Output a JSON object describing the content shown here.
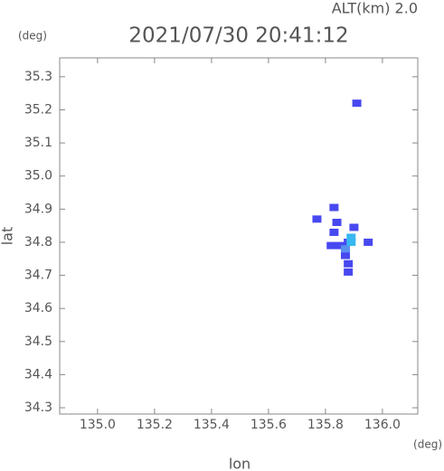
{
  "chart_data": {
    "type": "scatter",
    "title": "2021/07/30 20:41:12",
    "subtitle": "ALT(km) 2.0",
    "y_unit": "(deg)",
    "x_unit": "(deg)",
    "xlabel": "lon",
    "ylabel": "lat",
    "xlim": [
      134.867,
      136.124
    ],
    "ylim": [
      34.281,
      35.357
    ],
    "xticks": [
      {
        "value": 135,
        "label": "135.0"
      },
      135.2,
      135.4,
      135.6,
      135.8,
      {
        "value": 136,
        "label": "136.0"
      }
    ],
    "yticks": [
      34.3,
      34.4,
      34.5,
      34.6,
      34.7,
      34.8,
      34.9,
      {
        "value": 35,
        "label": "35.0"
      },
      35.1,
      35.2,
      35.3
    ],
    "x": [
      135.91,
      135.83,
      135.77,
      135.84,
      135.83,
      135.82,
      135.85,
      135.9,
      135.88,
      135.89,
      135.87,
      135.88,
      135.88,
      135.95,
      135.87,
      135.89
    ],
    "y": [
      35.22,
      34.905,
      34.87,
      34.86,
      34.83,
      34.79,
      34.79,
      34.845,
      34.8,
      34.815,
      34.76,
      34.735,
      34.71,
      34.8,
      34.78,
      34.8
    ],
    "colors": [
      "#4848f0",
      "#4848f0",
      "#4848f0",
      "#4848f0",
      "#4848f0",
      "#4848f0",
      "#4848f0",
      "#4848f0",
      "#4848f0",
      "#38b8f0",
      "#4848f0",
      "#4848f0",
      "#4848f0",
      "#4848f0",
      "#5a90f0",
      "#38b8f0"
    ],
    "grid": false
  }
}
